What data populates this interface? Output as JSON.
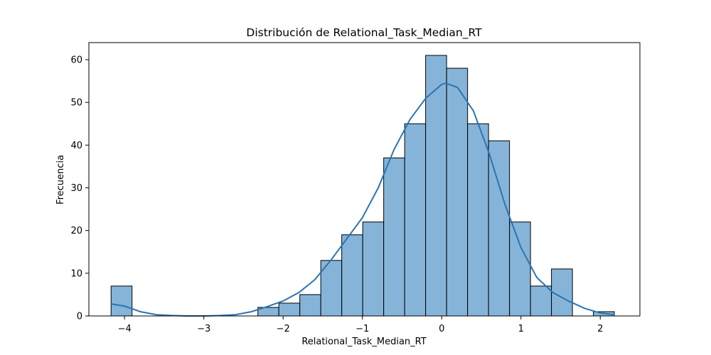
{
  "chart_data": {
    "type": "bar",
    "title": "Distribución de Relational_Task_Median_RT",
    "xlabel": "Relational_Task_Median_RT",
    "ylabel": "Frecuencia",
    "xlim": [
      -4.45,
      2.5
    ],
    "ylim": [
      0,
      64
    ],
    "x_ticks": [
      -4,
      -3,
      -2,
      -1,
      0,
      1,
      2
    ],
    "y_ticks": [
      0,
      10,
      20,
      30,
      40,
      50,
      60
    ],
    "grid": false,
    "bin_start": -4.17,
    "bin_width": 0.2645,
    "counts": [
      7,
      0,
      0,
      0,
      0,
      0,
      0,
      2,
      3,
      5,
      13,
      19,
      22,
      37,
      45,
      61,
      58,
      45,
      41,
      22,
      7,
      11,
      0,
      1
    ],
    "bar_color": "#86b4d9",
    "edge_color": "#000000",
    "kde": {
      "name": "",
      "color": "#2a75b3",
      "x": [
        -4.17,
        -4.0,
        -3.8,
        -3.6,
        -3.4,
        -3.2,
        -3.0,
        -2.8,
        -2.6,
        -2.4,
        -2.2,
        -2.0,
        -1.8,
        -1.6,
        -1.4,
        -1.2,
        -1.0,
        -0.8,
        -0.6,
        -0.4,
        -0.2,
        0.0,
        0.05,
        0.2,
        0.4,
        0.6,
        0.8,
        1.0,
        1.2,
        1.4,
        1.6,
        1.8,
        2.0,
        2.18
      ],
      "y": [
        2.8,
        2.3,
        1.0,
        0.3,
        0.1,
        0.0,
        0.0,
        0.1,
        0.3,
        1.0,
        2.2,
        3.5,
        5.5,
        8.5,
        13,
        18,
        23,
        30,
        39,
        46,
        51,
        54.2,
        54.5,
        53.5,
        48,
        38,
        26,
        16,
        9,
        5.5,
        3.5,
        1.8,
        0.7,
        0.3
      ]
    }
  }
}
